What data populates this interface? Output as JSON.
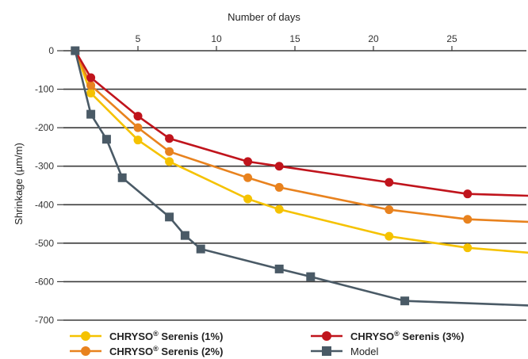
{
  "chart_data": {
    "type": "line",
    "xlabel": "Number of days",
    "ylabel": "Shrinkage (µm/m)",
    "xlim": [
      0,
      30
    ],
    "ylim": [
      -700,
      0
    ],
    "x_ticks": [
      5,
      10,
      15,
      20,
      25
    ],
    "y_ticks": [
      0,
      -100,
      -200,
      -300,
      -400,
      -500,
      -600,
      -700
    ],
    "grid": "horizontal",
    "legend_position": "bottom",
    "series": [
      {
        "name": "CHRYSO® Serenis (1%)",
        "brand": "CHRYSO",
        "detail": " Serenis (1%)",
        "color": "#f5c200",
        "marker": "circle",
        "x": [
          1,
          2,
          5,
          7,
          12,
          14,
          21,
          26,
          30
        ],
        "y": [
          0,
          -110,
          -232,
          -288,
          -385,
          -412,
          -482,
          -512,
          -525
        ]
      },
      {
        "name": "CHRYSO® Serenis (2%)",
        "brand": "CHRYSO",
        "detail": " Serenis (2%)",
        "color": "#e8821e",
        "marker": "circle",
        "x": [
          1,
          2,
          5,
          7,
          12,
          14,
          21,
          26,
          30
        ],
        "y": [
          0,
          -90,
          -200,
          -262,
          -330,
          -355,
          -413,
          -438,
          -445
        ]
      },
      {
        "name": "CHRYSO® Serenis (3%)",
        "brand": "CHRYSO",
        "detail": " Serenis (3%)",
        "color": "#c0141c",
        "marker": "circle",
        "x": [
          1,
          2,
          5,
          7,
          12,
          14,
          21,
          26,
          30
        ],
        "y": [
          0,
          -70,
          -170,
          -228,
          -288,
          -300,
          -342,
          -372,
          -377
        ]
      },
      {
        "name": "Model",
        "color": "#4a5a66",
        "marker": "square",
        "x": [
          1,
          2,
          3,
          4,
          7,
          8,
          9,
          14,
          16,
          22,
          30
        ],
        "y": [
          0,
          -165,
          -230,
          -330,
          -432,
          -480,
          -515,
          -567,
          -587,
          -650,
          -662
        ]
      }
    ]
  }
}
